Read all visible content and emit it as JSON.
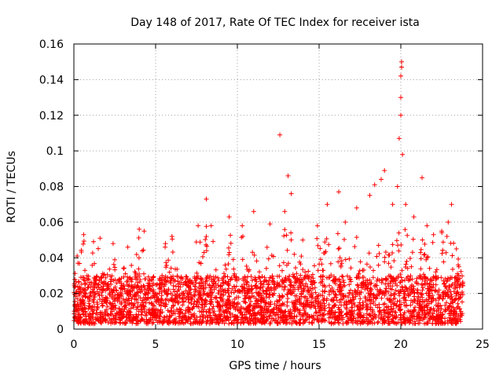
{
  "chart_data": {
    "type": "scatter",
    "title": "Day 148 of 2017, Rate Of TEC Index for receiver ista",
    "xlabel": "GPS time / hours",
    "ylabel": "ROTI / TECUs",
    "xlim": [
      0,
      25
    ],
    "ylim": [
      0,
      0.16
    ],
    "xticks": [
      0,
      5,
      10,
      15,
      20,
      25
    ],
    "yticks": [
      0,
      0.02,
      0.04,
      0.06,
      0.08,
      0.1,
      0.12,
      0.14,
      0.16
    ],
    "xtick_labels": [
      "0",
      "5",
      "10",
      "15",
      "20",
      "25"
    ],
    "ytick_labels": [
      "0",
      "0.02",
      "0.04",
      "0.06",
      "0.08",
      "0.1",
      "0.12",
      "0.14",
      "0.16"
    ],
    "grid": true,
    "marker": "+",
    "color": "#ff0000",
    "series": [
      {
        "name": "ROTI",
        "baseline_range": [
          0.003,
          0.03
        ],
        "time_span": [
          0,
          23.8
        ],
        "notable_points": [
          [
            0.2,
            0.041
          ],
          [
            0.6,
            0.053
          ],
          [
            1.2,
            0.049
          ],
          [
            1.6,
            0.051
          ],
          [
            2.4,
            0.048
          ],
          [
            3.3,
            0.046
          ],
          [
            4.0,
            0.056
          ],
          [
            4.3,
            0.055
          ],
          [
            5.6,
            0.048
          ],
          [
            6.0,
            0.052
          ],
          [
            7.6,
            0.058
          ],
          [
            8.1,
            0.073
          ],
          [
            8.4,
            0.058
          ],
          [
            9.5,
            0.063
          ],
          [
            10.3,
            0.058
          ],
          [
            11.0,
            0.066
          ],
          [
            12.0,
            0.059
          ],
          [
            12.6,
            0.109
          ],
          [
            12.9,
            0.066
          ],
          [
            13.1,
            0.086
          ],
          [
            13.3,
            0.076
          ],
          [
            14.0,
            0.05
          ],
          [
            14.9,
            0.058
          ],
          [
            15.5,
            0.07
          ],
          [
            16.2,
            0.077
          ],
          [
            16.6,
            0.06
          ],
          [
            17.3,
            0.068
          ],
          [
            18.1,
            0.075
          ],
          [
            18.4,
            0.081
          ],
          [
            18.8,
            0.084
          ],
          [
            19.0,
            0.089
          ],
          [
            19.5,
            0.07
          ],
          [
            19.8,
            0.08
          ],
          [
            19.9,
            0.107
          ],
          [
            20.0,
            0.12
          ],
          [
            20.0,
            0.13
          ],
          [
            20.0,
            0.142
          ],
          [
            20.05,
            0.147
          ],
          [
            20.05,
            0.15
          ],
          [
            20.1,
            0.098
          ],
          [
            20.3,
            0.07
          ],
          [
            20.8,
            0.063
          ],
          [
            21.3,
            0.085
          ],
          [
            21.6,
            0.058
          ],
          [
            22.0,
            0.053
          ],
          [
            22.5,
            0.055
          ],
          [
            22.9,
            0.06
          ],
          [
            23.1,
            0.07
          ],
          [
            23.4,
            0.045
          ]
        ]
      }
    ]
  }
}
